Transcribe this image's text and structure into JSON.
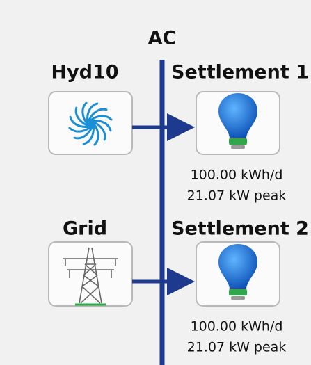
{
  "bus": {
    "label": "AC"
  },
  "sources": [
    {
      "label": "Hyd10"
    },
    {
      "label": "Grid"
    }
  ],
  "loads": [
    {
      "label": "Settlement 1",
      "energy": "100.00 kWh/d",
      "peak": "21.07 kW peak"
    },
    {
      "label": "Settlement 2",
      "energy": "100.00 kWh/d",
      "peak": "21.07 kW peak"
    }
  ]
}
